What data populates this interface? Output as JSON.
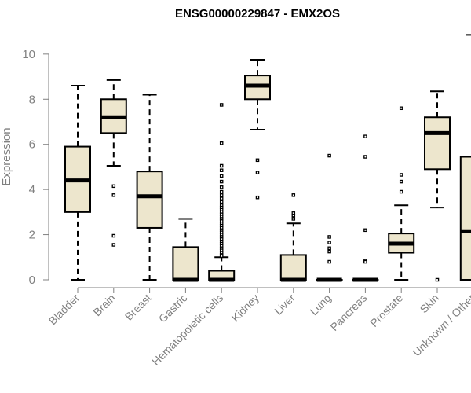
{
  "chart_data": {
    "type": "boxplot",
    "title": "ENSG00000229847 - EMX2OS",
    "xlabel": "",
    "ylabel": "Expression",
    "ylim": [
      0,
      10.9
    ],
    "yticks": [
      0,
      2,
      4,
      6,
      8,
      10
    ],
    "colors": {
      "box_fill": "#ede6cd",
      "stroke": "#000000",
      "axis": "#808080",
      "text": "#808080"
    },
    "categories": [
      "Bladder",
      "Brain",
      "Breast",
      "Gastric",
      "Hematopoietic cells",
      "Kidney",
      "Liver",
      "Lung",
      "Pancreas",
      "Prostate",
      "Skin",
      "Unknown / Other"
    ],
    "boxes": [
      {
        "name": "Bladder",
        "whisker_low": 0.0,
        "q1": 3.0,
        "median": 4.4,
        "q3": 5.9,
        "whisker_high": 8.6,
        "outliers": []
      },
      {
        "name": "Brain",
        "whisker_low": 5.05,
        "q1": 6.5,
        "median": 7.2,
        "q3": 8.0,
        "whisker_high": 8.85,
        "outliers": [
          4.15,
          3.75,
          1.95,
          1.55
        ]
      },
      {
        "name": "Breast",
        "whisker_low": 0.0,
        "q1": 2.3,
        "median": 3.7,
        "q3": 4.8,
        "whisker_high": 8.2,
        "outliers": []
      },
      {
        "name": "Gastric",
        "whisker_low": 0.0,
        "q1": 0.0,
        "median": 0.0,
        "q3": 1.45,
        "whisker_high": 2.7,
        "outliers": []
      },
      {
        "name": "Hematopoietic cells",
        "whisker_low": 0.0,
        "q1": 0.0,
        "median": 0.0,
        "q3": 0.4,
        "whisker_high": 1.0,
        "outliers": [
          7.75,
          6.05,
          5.05,
          4.85,
          4.6,
          4.35,
          4.1,
          3.9,
          3.75,
          3.6,
          3.45,
          3.3,
          3.2,
          3.1,
          3.0,
          2.9,
          2.8,
          2.7,
          2.6,
          2.5,
          2.4,
          2.3,
          2.2,
          2.1,
          2.0,
          1.9,
          1.8,
          1.7,
          1.6,
          1.5,
          1.4,
          1.3,
          1.2,
          1.1,
          1.05
        ]
      },
      {
        "name": "Kidney",
        "whisker_low": 6.65,
        "q1": 8.0,
        "median": 8.6,
        "q3": 9.05,
        "whisker_high": 9.75,
        "outliers": [
          5.3,
          4.75,
          3.65
        ]
      },
      {
        "name": "Liver",
        "whisker_low": 0.0,
        "q1": 0.0,
        "median": 0.0,
        "q3": 1.1,
        "whisker_high": 2.5,
        "outliers": [
          3.75,
          2.95,
          2.85,
          2.7
        ]
      },
      {
        "name": "Lung",
        "whisker_low": 0.0,
        "q1": 0.0,
        "median": 0.0,
        "q3": 0.0,
        "whisker_high": 0.0,
        "outliers": [
          5.5,
          1.9,
          1.65,
          1.4,
          1.25,
          0.8
        ]
      },
      {
        "name": "Pancreas",
        "whisker_low": 0.0,
        "q1": 0.0,
        "median": 0.0,
        "q3": 0.0,
        "whisker_high": 0.0,
        "outliers": [
          6.35,
          5.45,
          2.2,
          0.85,
          0.8
        ]
      },
      {
        "name": "Prostate",
        "whisker_low": 0.0,
        "q1": 1.2,
        "median": 1.6,
        "q3": 2.05,
        "whisker_high": 3.3,
        "outliers": [
          7.6,
          4.65,
          4.35,
          3.9
        ]
      },
      {
        "name": "Skin",
        "whisker_low": 3.2,
        "q1": 4.9,
        "median": 6.5,
        "q3": 7.2,
        "whisker_high": 8.35,
        "outliers": [
          0.0
        ]
      },
      {
        "name": "Unknown / Other",
        "whisker_low": 0.0,
        "q1": 0.0,
        "median": 2.15,
        "q3": 5.45,
        "whisker_high": 10.85,
        "outliers": []
      }
    ]
  }
}
